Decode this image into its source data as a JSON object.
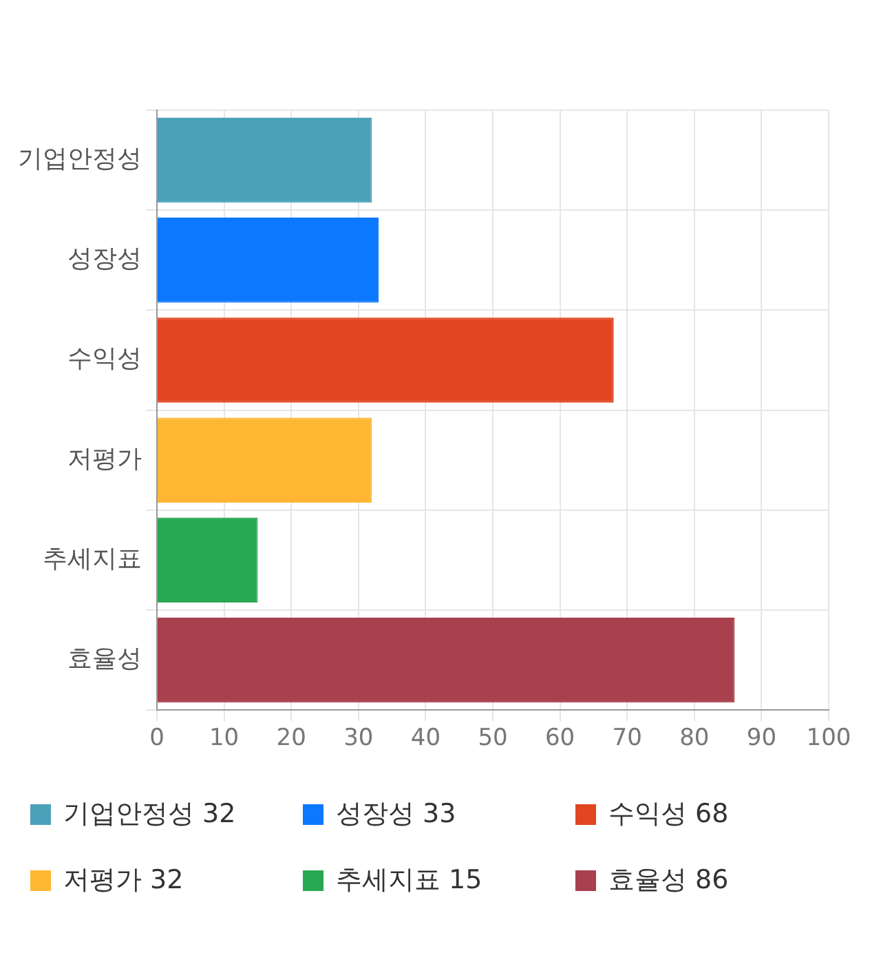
{
  "chart_data": {
    "type": "bar",
    "orientation": "horizontal",
    "categories": [
      "기업안정성",
      "성장성",
      "수익성",
      "저평가",
      "추세지표",
      "효율성"
    ],
    "series": [
      {
        "name": "기업안정성 32",
        "color": "#4aa1ba",
        "values": [
          32,
          null,
          null,
          null,
          null,
          null
        ]
      },
      {
        "name": "성장성 33",
        "color": "#0b78ff",
        "values": [
          null,
          33,
          null,
          null,
          null,
          null
        ]
      },
      {
        "name": "수익성 68",
        "color": "#e24522",
        "values": [
          null,
          null,
          68,
          null,
          null,
          null
        ]
      },
      {
        "name": "저평가 32",
        "color": "#ffb733",
        "values": [
          null,
          null,
          null,
          32,
          null,
          null
        ]
      },
      {
        "name": "추세지표 15",
        "color": "#28a853",
        "values": [
          null,
          null,
          null,
          null,
          15,
          null
        ]
      },
      {
        "name": "효율성 86",
        "color": "#a8404e",
        "values": [
          null,
          null,
          null,
          null,
          null,
          86
        ]
      }
    ],
    "xlim": [
      0,
      100
    ],
    "xticks": [
      0,
      10,
      20,
      30,
      40,
      50,
      60,
      70,
      80,
      90,
      100
    ],
    "grid": true,
    "legend": "bottom"
  }
}
